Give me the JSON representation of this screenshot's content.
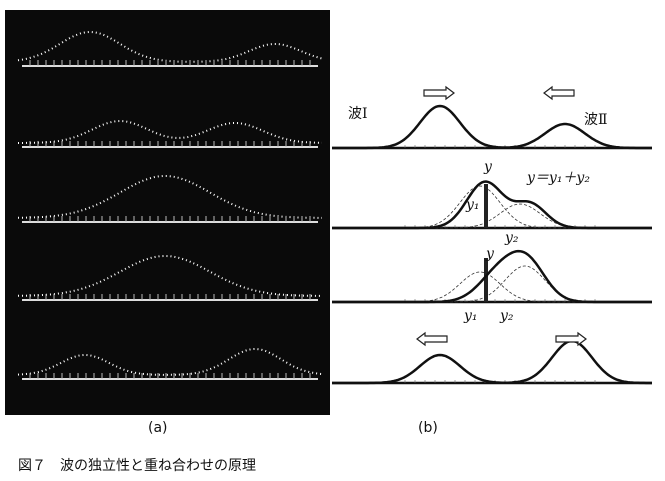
{
  "figure": {
    "caption": "図７　波の独立性と重ね合わせの原理",
    "panels": [
      {
        "label": "(a)"
      },
      {
        "label": "(b)"
      }
    ],
    "annotations": {
      "wave1": "波Ⅰ",
      "wave2": "波Ⅱ",
      "formula": "y＝y₁＋y₂",
      "row2": {
        "y": "y",
        "y1": "y₁",
        "y2": "y₂"
      },
      "row3": {
        "y": "y",
        "y1": "y₁",
        "y2": "y₂"
      }
    }
  }
}
